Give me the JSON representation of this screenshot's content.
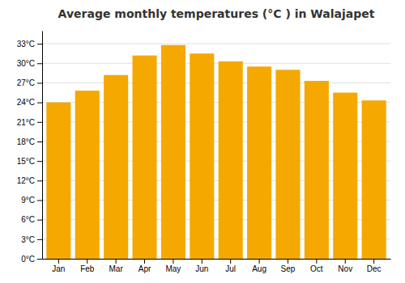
{
  "chart_data": {
    "type": "bar",
    "title": "Average monthly temperatures (°C ) in Walajapet",
    "categories": [
      "Jan",
      "Feb",
      "Mar",
      "Apr",
      "May",
      "Jun",
      "Jul",
      "Aug",
      "Sep",
      "Oct",
      "Nov",
      "Dec"
    ],
    "values": [
      24.0,
      25.8,
      28.2,
      31.2,
      32.8,
      31.5,
      30.3,
      29.5,
      29.0,
      27.3,
      25.5,
      24.3
    ],
    "color": "#F5A800",
    "ylim": [
      0,
      35
    ],
    "yticks": [
      {
        "value": 0,
        "label": "0°C"
      },
      {
        "value": 3,
        "label": "3°C"
      },
      {
        "value": 6,
        "label": "6°C"
      },
      {
        "value": 9,
        "label": "9°C"
      },
      {
        "value": 12,
        "label": "12°C"
      },
      {
        "value": 15,
        "label": "15°C"
      },
      {
        "value": 18,
        "label": "18°C"
      },
      {
        "value": 21,
        "label": "21°C"
      },
      {
        "value": 24,
        "label": "24°C"
      },
      {
        "value": 27,
        "label": "27°C"
      },
      {
        "value": 30,
        "label": "30°C"
      },
      {
        "value": 33,
        "label": "33°C"
      }
    ],
    "grid": true
  }
}
